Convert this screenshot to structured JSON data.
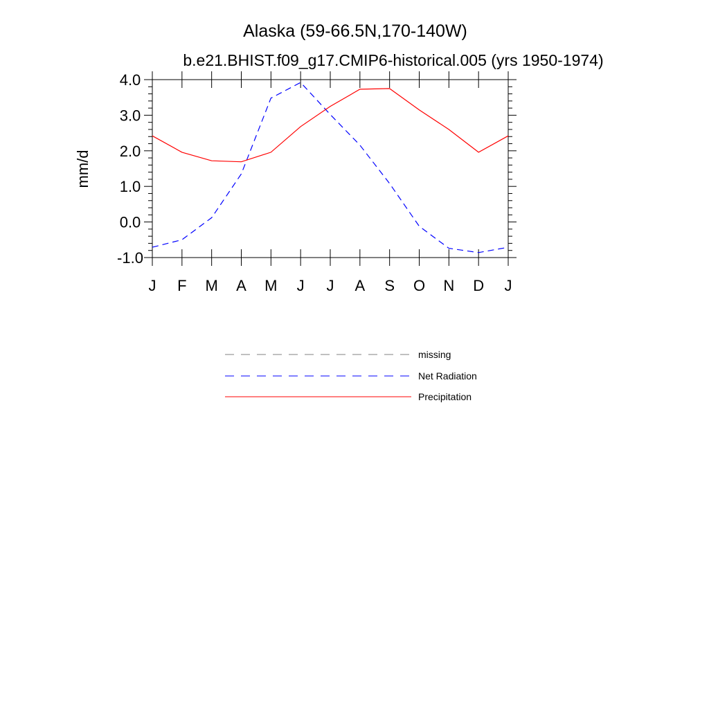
{
  "chart_data": {
    "type": "line",
    "title": "Alaska (59-66.5N,170-140W)",
    "subtitle": "b.e21.BHIST.f09_g17.CMIP6-historical.005 (yrs 1950-1974)",
    "xlabel": "",
    "ylabel": "mm/d",
    "ylim": [
      -1.0,
      4.0
    ],
    "yticks": [
      "4.0",
      "3.0",
      "2.0",
      "1.0",
      "0.0",
      "-1.0"
    ],
    "ytick_values": [
      4.0,
      3.0,
      2.0,
      1.0,
      0.0,
      -1.0
    ],
    "categories": [
      "J",
      "F",
      "M",
      "A",
      "M",
      "J",
      "J",
      "A",
      "S",
      "O",
      "N",
      "D",
      "J"
    ],
    "grid": false,
    "legend_position": "bottom",
    "series": [
      {
        "name": "Net Radiation",
        "color": "#0000ff",
        "style": "dashed",
        "values": [
          -0.71,
          -0.5,
          0.12,
          1.35,
          3.48,
          3.92,
          3.02,
          2.16,
          1.08,
          -0.12,
          -0.74,
          -0.86,
          -0.71
        ]
      },
      {
        "name": "Precipitation",
        "color": "#ff0000",
        "style": "solid",
        "values": [
          2.42,
          1.96,
          1.72,
          1.69,
          1.96,
          2.68,
          3.25,
          3.73,
          3.75,
          3.15,
          2.6,
          1.96,
          2.42
        ]
      }
    ],
    "legend": [
      {
        "label": "missing",
        "color": "#808080",
        "style": "dashed"
      },
      {
        "label": "Net Radiation",
        "color": "#0000ff",
        "style": "dashed"
      },
      {
        "label": "Precipitation",
        "color": "#ff0000",
        "style": "solid"
      }
    ]
  }
}
